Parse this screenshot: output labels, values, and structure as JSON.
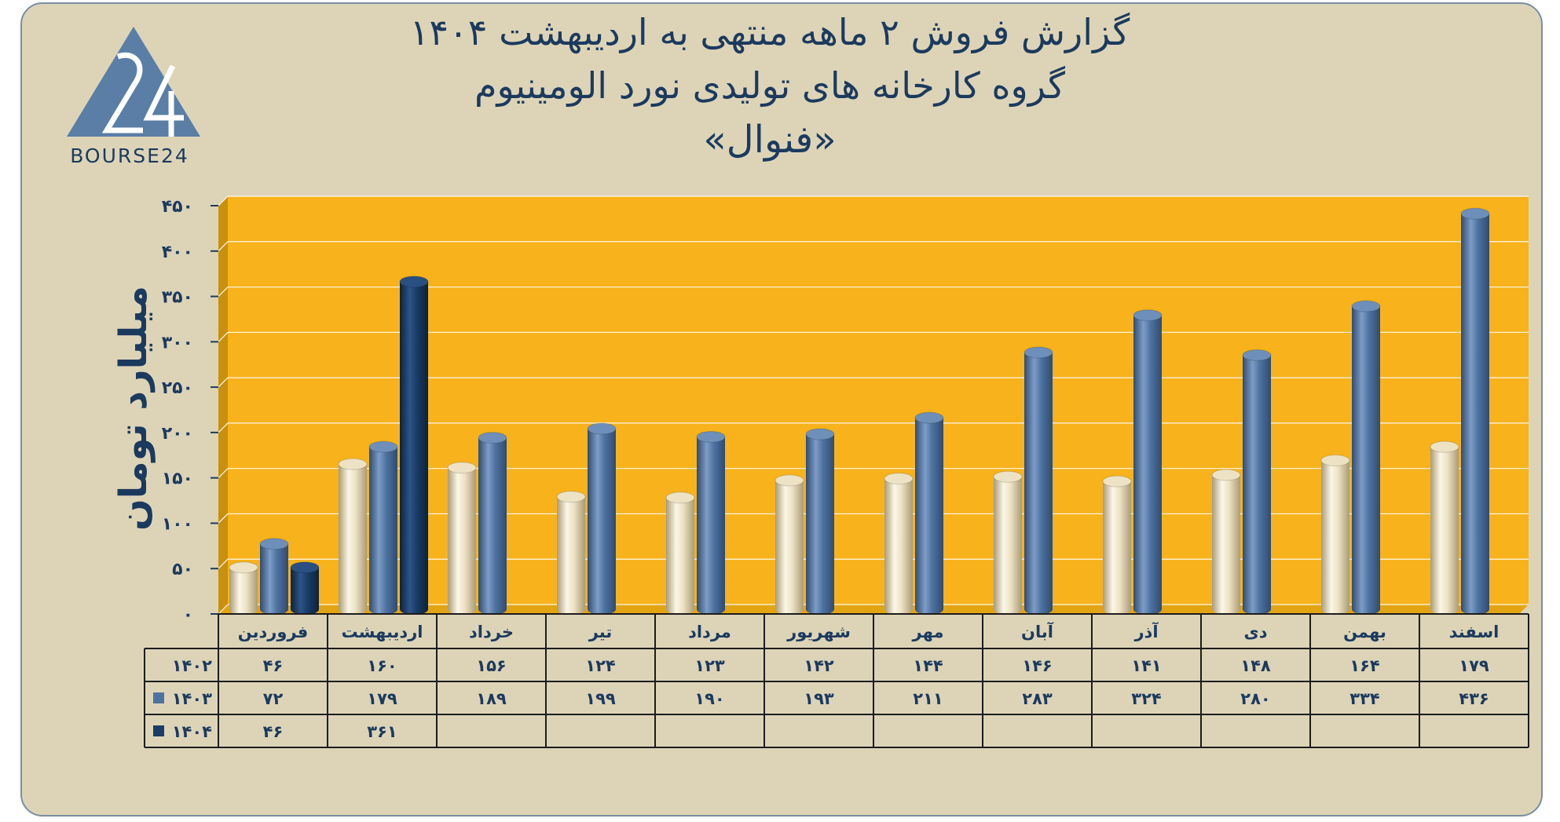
{
  "title": {
    "line1": "گزارش  فروش ۲ ماهه منتهی به اردیبهشت ۱۴۰۴",
    "line2": "گروه کارخانه های تولیدی نورد الومینیوم",
    "line3": "«فنوال»"
  },
  "logo": {
    "text": "BOURSE24",
    "mark": "24"
  },
  "colors": {
    "panel": "#ddd4b8",
    "plot_back": "#f7b21c",
    "plot_side": "#c8900c",
    "plot_floor": "#e3a414",
    "series_1402": "#ede2c4",
    "series_1403": "#4e72a0",
    "series_1404": "#1a3c66",
    "text": "#1c3a5e"
  },
  "chart_data": {
    "type": "bar",
    "ylabel": "میلیارد تومان",
    "ylim": [
      0,
      450
    ],
    "yticks": [
      0,
      50,
      100,
      150,
      200,
      250,
      300,
      350,
      400,
      450
    ],
    "ytick_labels": [
      "۰",
      "۵۰",
      "۱۰۰",
      "۱۵۰",
      "۲۰۰",
      "۲۵۰",
      "۳۰۰",
      "۳۵۰",
      "۴۰۰",
      "۴۵۰"
    ],
    "grid": true,
    "categories": [
      "فروردین",
      "اردیبهشت",
      "خرداد",
      "تیر",
      "مرداد",
      "شهریور",
      "مهر",
      "آبان",
      "آذر",
      "دی",
      "بهمن",
      "اسفند"
    ],
    "series": [
      {
        "name": "۱۴۰۲",
        "values": [
          46,
          160,
          156,
          124,
          123,
          142,
          144,
          146,
          141,
          148,
          164,
          179
        ],
        "labels": [
          "۴۶",
          "۱۶۰",
          "۱۵۶",
          "۱۲۴",
          "۱۲۳",
          "۱۴۲",
          "۱۴۴",
          "۱۴۶",
          "۱۴۱",
          "۱۴۸",
          "۱۶۴",
          "۱۷۹"
        ]
      },
      {
        "name": "۱۴۰۳",
        "values": [
          72,
          179,
          189,
          199,
          190,
          193,
          211,
          283,
          324,
          280,
          334,
          436
        ],
        "labels": [
          "۷۲",
          "۱۷۹",
          "۱۸۹",
          "۱۹۹",
          "۱۹۰",
          "۱۹۳",
          "۲۱۱",
          "۲۸۳",
          "۳۲۴",
          "۲۸۰",
          "۳۳۴",
          "۴۳۶"
        ]
      },
      {
        "name": "۱۴۰۴",
        "values": [
          46,
          361,
          null,
          null,
          null,
          null,
          null,
          null,
          null,
          null,
          null,
          null
        ],
        "labels": [
          "۴۶",
          "۳۶۱",
          "",
          "",
          "",
          "",
          "",
          "",
          "",
          "",
          "",
          ""
        ]
      }
    ]
  }
}
